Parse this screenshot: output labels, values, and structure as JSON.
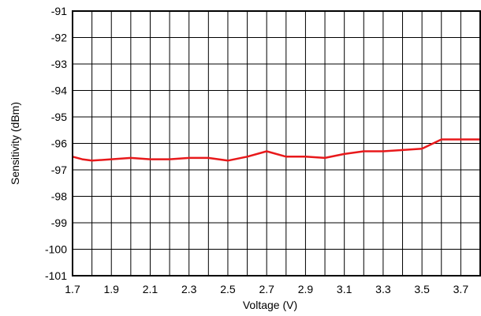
{
  "chart_data": {
    "type": "line",
    "title": "",
    "xlabel": "Voltage (V)",
    "ylabel": "Sensitivity (dBm)",
    "xlim": [
      1.7,
      3.8
    ],
    "ylim": [
      -101,
      -91
    ],
    "x_ticks": [
      1.7,
      1.8,
      1.9,
      2.0,
      2.1,
      2.2,
      2.3,
      2.4,
      2.5,
      2.6,
      2.7,
      2.8,
      2.9,
      3.0,
      3.1,
      3.2,
      3.3,
      3.4,
      3.5,
      3.6,
      3.7,
      3.8
    ],
    "x_tick_labels": [
      "1.7",
      "1.9",
      "2.1",
      "2.3",
      "2.5",
      "2.7",
      "2.9",
      "3.1",
      "3.3",
      "3.5",
      "3.7"
    ],
    "x_tick_label_values": [
      1.7,
      1.9,
      2.1,
      2.3,
      2.5,
      2.7,
      2.9,
      3.1,
      3.3,
      3.5,
      3.7
    ],
    "y_ticks": [
      -91,
      -92,
      -93,
      -94,
      -95,
      -96,
      -97,
      -98,
      -99,
      -100,
      -101
    ],
    "grid": true,
    "line_color": "#e8191b",
    "series": [
      {
        "x": [
          1.7,
          1.75,
          1.8,
          1.9,
          2.0,
          2.1,
          2.2,
          2.3,
          2.4,
          2.5,
          2.6,
          2.7,
          2.8,
          2.9,
          3.0,
          3.1,
          3.2,
          3.3,
          3.4,
          3.5,
          3.6,
          3.7,
          3.8
        ],
        "values": [
          -96.5,
          -96.6,
          -96.65,
          -96.6,
          -96.55,
          -96.6,
          -96.6,
          -96.55,
          -96.55,
          -96.65,
          -96.5,
          -96.3,
          -96.5,
          -96.5,
          -96.55,
          -96.4,
          -96.3,
          -96.3,
          -96.25,
          -96.2,
          -95.85,
          -95.85,
          -95.85
        ]
      }
    ]
  }
}
